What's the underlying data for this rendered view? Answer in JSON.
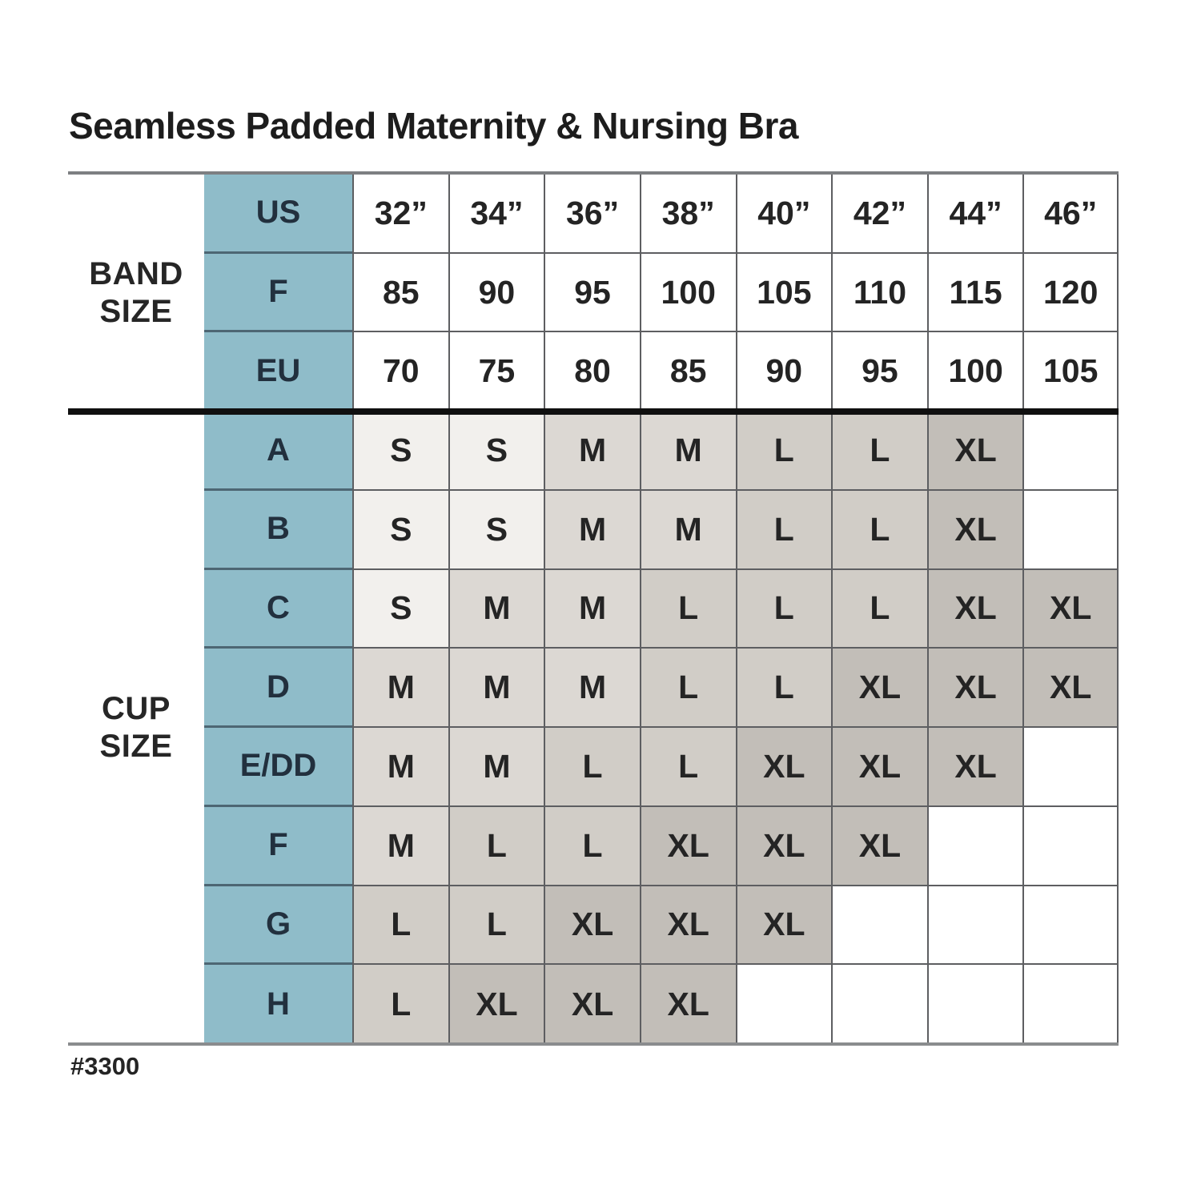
{
  "title": "Seamless Padded Maternity & Nursing Bra",
  "footnote": "#3300",
  "colors": {
    "header_accent": "#8fbcc9",
    "accent_divider": "#4d6673",
    "size_S": "#f2f0ed",
    "size_M": "#dcd8d3",
    "size_L": "#d1cdc7",
    "size_XL": "#c2beb8",
    "empty": "#ffffff"
  },
  "chart_data": {
    "type": "table",
    "title": "Seamless Padded Maternity & Nursing Bra",
    "band_size_label": "BAND SIZE",
    "cup_size_label": "CUP SIZE",
    "band_rows": [
      {
        "key": "US",
        "values": [
          "32”",
          "34”",
          "36”",
          "38”",
          "40”",
          "42”",
          "44”",
          "46”"
        ]
      },
      {
        "key": "F",
        "values": [
          "85",
          "90",
          "95",
          "100",
          "105",
          "110",
          "115",
          "120"
        ]
      },
      {
        "key": "EU",
        "values": [
          "70",
          "75",
          "80",
          "85",
          "90",
          "95",
          "100",
          "105"
        ]
      }
    ],
    "cup_rows": [
      {
        "key": "A",
        "values": [
          "S",
          "S",
          "M",
          "M",
          "L",
          "L",
          "XL",
          ""
        ]
      },
      {
        "key": "B",
        "values": [
          "S",
          "S",
          "M",
          "M",
          "L",
          "L",
          "XL",
          ""
        ]
      },
      {
        "key": "C",
        "values": [
          "S",
          "M",
          "M",
          "L",
          "L",
          "L",
          "XL",
          "XL"
        ]
      },
      {
        "key": "D",
        "values": [
          "M",
          "M",
          "M",
          "L",
          "L",
          "XL",
          "XL",
          "XL"
        ]
      },
      {
        "key": "E/DD",
        "values": [
          "M",
          "M",
          "L",
          "L",
          "XL",
          "XL",
          "XL",
          ""
        ]
      },
      {
        "key": "F",
        "values": [
          "M",
          "L",
          "L",
          "XL",
          "XL",
          "XL",
          "",
          ""
        ]
      },
      {
        "key": "G",
        "values": [
          "L",
          "L",
          "XL",
          "XL",
          "XL",
          "",
          "",
          ""
        ]
      },
      {
        "key": "H",
        "values": [
          "L",
          "XL",
          "XL",
          "XL",
          "",
          "",
          "",
          ""
        ]
      }
    ]
  }
}
